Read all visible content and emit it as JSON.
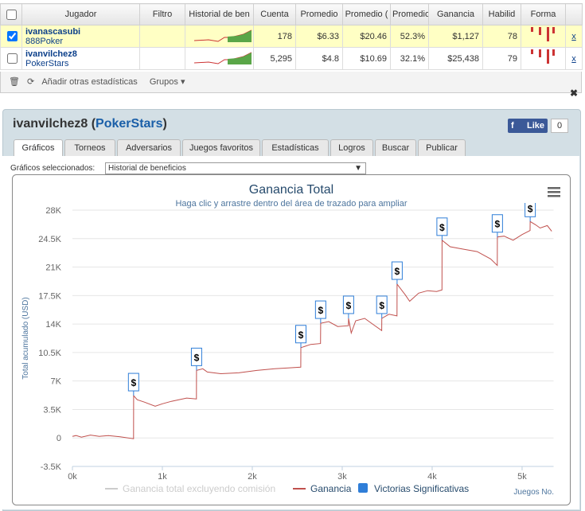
{
  "table": {
    "headers": [
      "Jugador",
      "Filtro",
      "Historial de ben",
      "Cuenta",
      "Promedio",
      "Promedio (",
      "Promedio",
      "Ganancia",
      "Habilid",
      "Forma"
    ],
    "rows": [
      {
        "checked": true,
        "player": "ivanascasubi",
        "site": "888Poker",
        "stats": [
          "178",
          "$6.33",
          "$20.46",
          "52.3%",
          "$1,127",
          "78"
        ],
        "remove": "x"
      },
      {
        "checked": false,
        "player": "ivanvilchez8",
        "site": "PokerStars",
        "stats": [
          "5,295",
          "$4.8",
          "$10.69",
          "32.1%",
          "$25,438",
          "79"
        ],
        "remove": "x"
      }
    ]
  },
  "toolbar": {
    "add": "Añadir otras estadísticas",
    "groups": "Grupos"
  },
  "panel": {
    "title_parts": [
      "ivanvilchez8 (",
      "PokerStars",
      ")"
    ],
    "like": "Like",
    "like_count": "0",
    "tabs": [
      "Gráficos",
      "Torneos",
      "Adversarios",
      "Juegos favoritos",
      "Estadísticas",
      "Logros",
      "Buscar",
      "Publicar"
    ],
    "selector_label": "Gráficos seleccionados:",
    "selector_value": "Historial de beneficios"
  },
  "chart_data": {
    "type": "line",
    "title": "Ganancia Total",
    "subtitle": "Haga clic y arrastre dentro del área de trazado para ampliar",
    "y_label": "Total acumulado (USD)",
    "x_label": "Juegos No.",
    "xlim": [
      0,
      5350
    ],
    "xticks": [
      {
        "value": 0,
        "label": "0k"
      },
      {
        "value": 1000,
        "label": "1k"
      },
      {
        "value": 2000,
        "label": "2k"
      },
      {
        "value": 3000,
        "label": "3k"
      },
      {
        "value": 4000,
        "label": "4k"
      },
      {
        "value": 5000,
        "label": "5k"
      }
    ],
    "ylim": [
      -3500,
      28000
    ],
    "yticks": [
      {
        "value": -3500,
        "label": "-3.5K"
      },
      0,
      {
        "value": 3500,
        "label": "3.5K"
      },
      {
        "value": 7000,
        "label": "7K"
      },
      {
        "value": 10500,
        "label": "10.5K"
      },
      {
        "value": 14000,
        "label": "14K"
      },
      {
        "value": 17500,
        "label": "17.5K"
      },
      {
        "value": 21000,
        "label": "21K"
      },
      {
        "value": 24500,
        "label": "24.5K"
      },
      {
        "value": 28000,
        "label": "28K"
      }
    ],
    "grid": true,
    "series": [
      {
        "name": "Ganancia total excluyendo comisión",
        "color": "#cccccc",
        "visible": false
      },
      {
        "name": "Ganancia",
        "color": "#c0504d",
        "visible": true,
        "x": [
          0,
          40,
          100,
          200,
          300,
          400,
          530,
          680,
          681,
          720,
          800,
          920,
          1000,
          1100,
          1270,
          1379,
          1380,
          1450,
          1500,
          1650,
          1850,
          2050,
          2250,
          2400,
          2539,
          2540,
          2650,
          2759,
          2760,
          2850,
          2950,
          3069,
          3070,
          3100,
          3150,
          3250,
          3350,
          3439,
          3440,
          3520,
          3609,
          3610,
          3700,
          3750,
          3850,
          3950,
          4050,
          4109,
          4110,
          4200,
          4350,
          4500,
          4650,
          4724,
          4725,
          4800,
          4900,
          5000,
          5089,
          5090,
          5150,
          5200,
          5280,
          5330
        ],
        "values": [
          200,
          300,
          100,
          350,
          200,
          300,
          150,
          -100,
          5200,
          4700,
          4400,
          3900,
          4200,
          4500,
          4900,
          4800,
          8300,
          8500,
          8100,
          7900,
          8000,
          8300,
          8500,
          8600,
          8700,
          11100,
          11500,
          11600,
          14100,
          14300,
          13700,
          13800,
          14700,
          12900,
          14400,
          14700,
          13900,
          13200,
          14700,
          15200,
          15000,
          18900,
          17600,
          16800,
          17800,
          18100,
          18000,
          18200,
          24300,
          23500,
          23200,
          22900,
          22000,
          21200,
          24700,
          24800,
          24300,
          25000,
          25500,
          26600,
          26200,
          25800,
          26100,
          25400
        ]
      },
      {
        "name": "Victorias Significativas",
        "color": "#2f7ed8",
        "visible": true,
        "symbol": "$",
        "x": [
          680,
          1380,
          2540,
          2760,
          3070,
          3440,
          3610,
          4110,
          4725,
          5090
        ],
        "values": [
          5200,
          8300,
          11100,
          14100,
          14700,
          14700,
          18900,
          24300,
          24700,
          26600
        ]
      }
    ]
  }
}
